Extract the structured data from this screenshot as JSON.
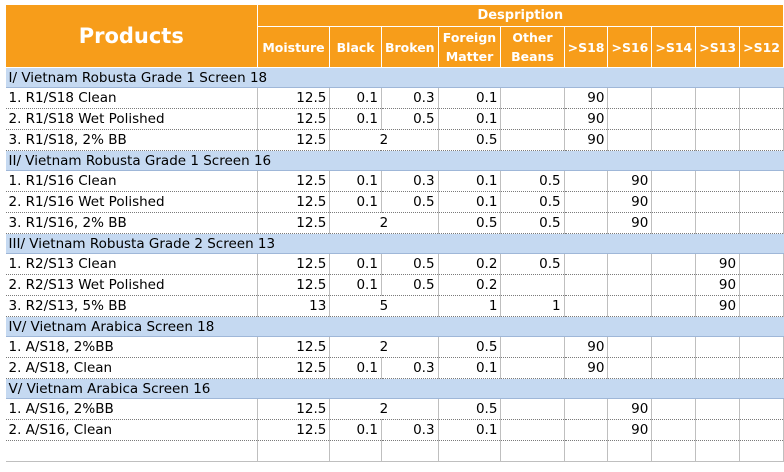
{
  "header": {
    "products": "Products",
    "description": "Despription",
    "columns": [
      "Moisture",
      "Black",
      "Broken",
      "Foreign Matter",
      "Other Beans",
      ">S18",
      ">S16",
      ">S14",
      ">S13",
      ">S12"
    ]
  },
  "sections": [
    {
      "title": "I/ Vietnam Robusta Grade 1 Screen 18",
      "rows": [
        {
          "label": "1. R1/S18 Clean",
          "moisture": "12.5",
          "black": "0.1",
          "broken": "0.3",
          "foreign": "0.1",
          "other": "",
          "s18": "90",
          "s16": "",
          "s14": "",
          "s13": "",
          "s12": ""
        },
        {
          "label": "2. R1/S18 Wet Polished",
          "moisture": "12.5",
          "black": "0.1",
          "broken": "0.5",
          "foreign": "0.1",
          "other": "",
          "s18": "90",
          "s16": "",
          "s14": "",
          "s13": "",
          "s12": ""
        },
        {
          "label": "3. R1/S18, 2% BB",
          "moisture": "12.5",
          "blackbroken": "2",
          "foreign": "0.5",
          "other": "",
          "s18": "90",
          "s16": "",
          "s14": "",
          "s13": "",
          "s12": ""
        }
      ]
    },
    {
      "title": "II/ Vietnam Robusta Grade 1 Screen 16",
      "rows": [
        {
          "label": "1. R1/S16 Clean",
          "moisture": "12.5",
          "black": "0.1",
          "broken": "0.3",
          "foreign": "0.1",
          "other": "0.5",
          "s18": "",
          "s16": "90",
          "s14": "",
          "s13": "",
          "s12": ""
        },
        {
          "label": "2. R1/S16 Wet Polished",
          "moisture": "12.5",
          "black": "0.1",
          "broken": "0.5",
          "foreign": "0.1",
          "other": "0.5",
          "s18": "",
          "s16": "90",
          "s14": "",
          "s13": "",
          "s12": ""
        },
        {
          "label": "3. R1/S16, 2% BB",
          "moisture": "12.5",
          "blackbroken": "2",
          "foreign": "0.5",
          "other": "0.5",
          "s18": "",
          "s16": "90",
          "s14": "",
          "s13": "",
          "s12": ""
        }
      ]
    },
    {
      "title": "III/ Vietnam Robusta Grade 2 Screen 13",
      "rows": [
        {
          "label": "1. R2/S13 Clean",
          "moisture": "12.5",
          "black": "0.1",
          "broken": "0.5",
          "foreign": "0.2",
          "other": "0.5",
          "s18": "",
          "s16": "",
          "s14": "",
          "s13": "90",
          "s12": ""
        },
        {
          "label": "2. R2/S13 Wet Polished",
          "moisture": "12.5",
          "black": "0.1",
          "broken": "0.5",
          "foreign": "0.2",
          "other": "",
          "s18": "",
          "s16": "",
          "s14": "",
          "s13": "90",
          "s12": ""
        },
        {
          "label": "3. R2/S13, 5% BB",
          "moisture": "13",
          "blackbroken": "5",
          "foreign": "1",
          "other": "1",
          "s18": "",
          "s16": "",
          "s14": "",
          "s13": "90",
          "s12": ""
        }
      ]
    },
    {
      "title": "IV/ Vietnam Arabica Screen 18",
      "rows": [
        {
          "label": "1. A/S18, 2%BB",
          "moisture": "12.5",
          "blackbroken": "2",
          "foreign": "0.5",
          "other": "",
          "s18": "90",
          "s16": "",
          "s14": "",
          "s13": "",
          "s12": ""
        },
        {
          "label": "2. A/S18, Clean",
          "moisture": "12.5",
          "black": "0.1",
          "broken": "0.3",
          "foreign": "0.1",
          "other": "",
          "s18": "90",
          "s16": "",
          "s14": "",
          "s13": "",
          "s12": ""
        }
      ]
    },
    {
      "title": "V/ Vietnam Arabica Screen 16",
      "rows": [
        {
          "label": "1. A/S16, 2%BB",
          "moisture": "12.5",
          "blackbroken": "2",
          "foreign": "0.5",
          "other": "",
          "s18": "",
          "s16": "90",
          "s14": "",
          "s13": "",
          "s12": ""
        },
        {
          "label": "2. A/S16, Clean",
          "moisture": "12.5",
          "black": "0.1",
          "broken": "0.3",
          "foreign": "0.1",
          "other": "",
          "s18": "",
          "s16": "90",
          "s14": "",
          "s13": "",
          "s12": ""
        }
      ]
    }
  ]
}
